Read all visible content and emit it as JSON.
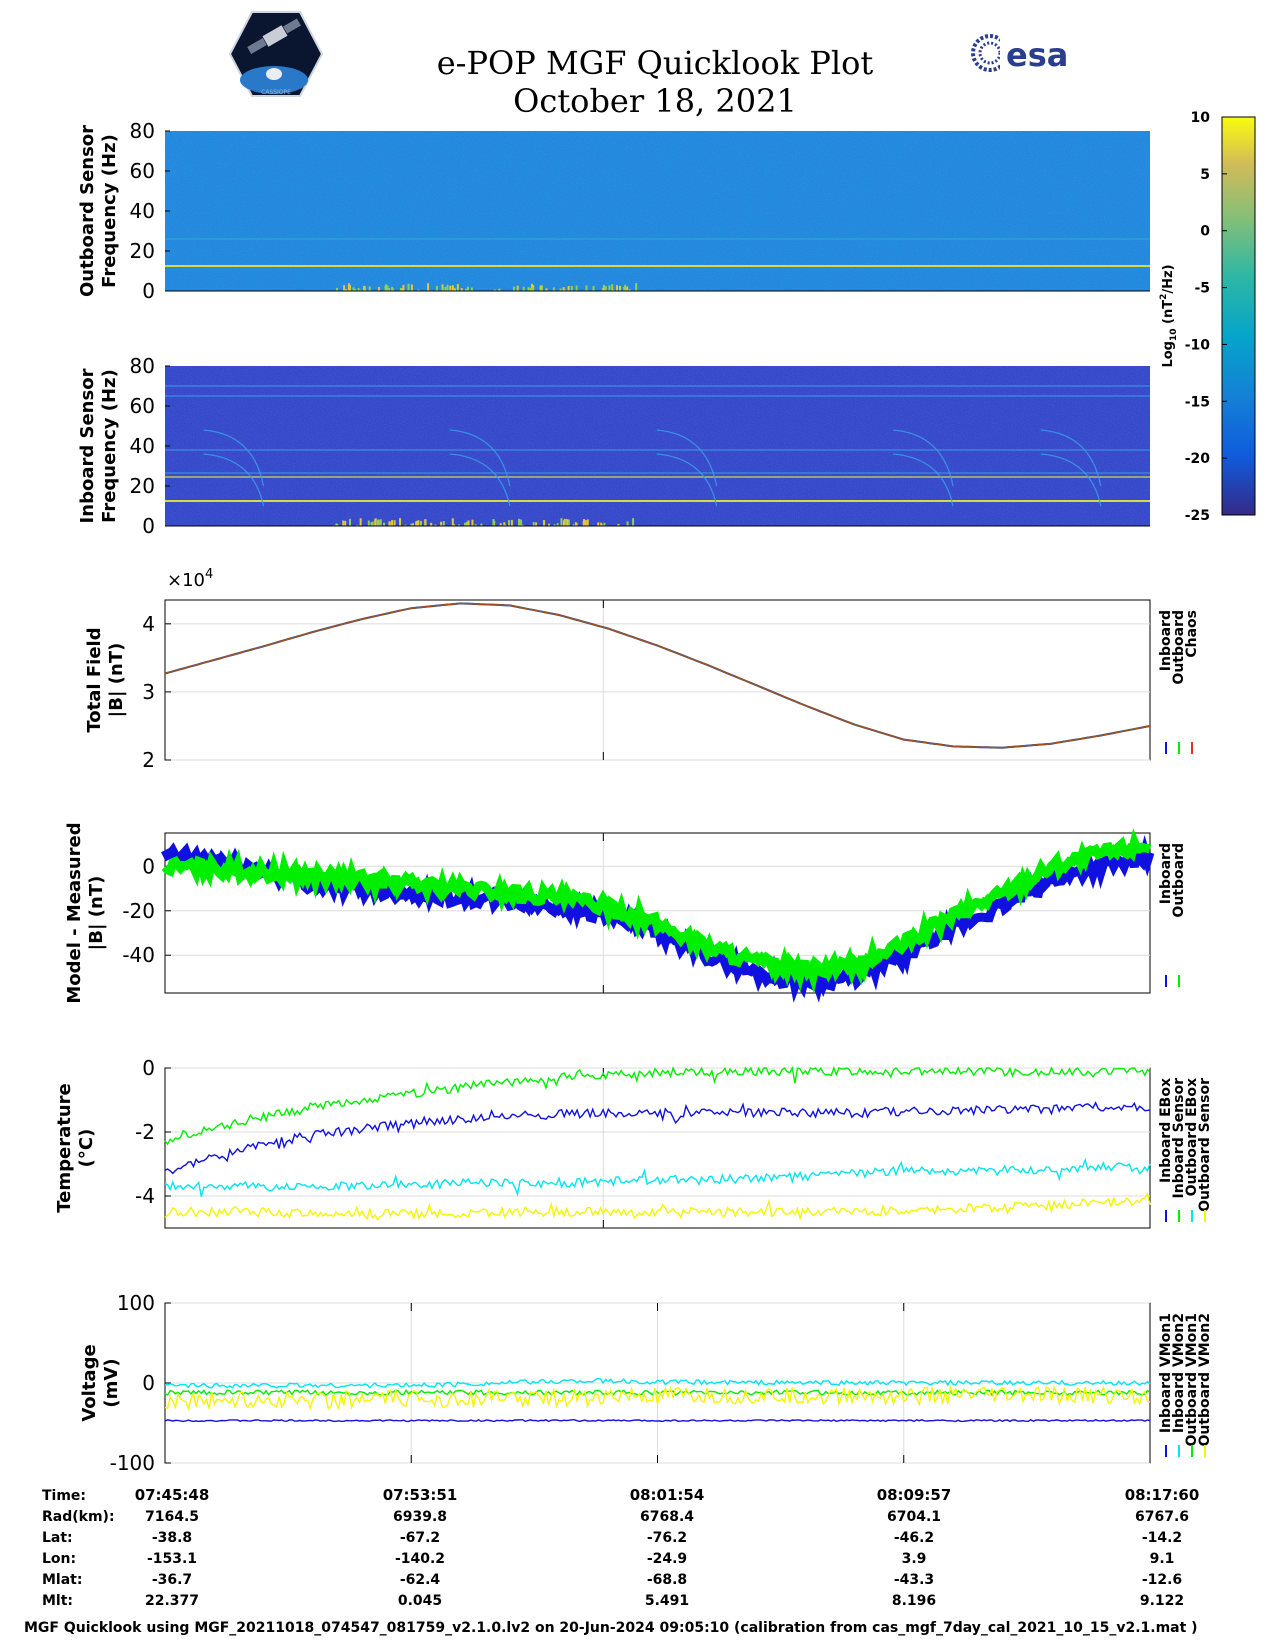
{
  "title": {
    "line1": "e-POP MGF Quicklook Plot",
    "line2": "October 18, 2021"
  },
  "logos": {
    "left": "cassiope-mission-logo",
    "right_text": "esa"
  },
  "colorbar": {
    "label": "Log10 (nT^2/Hz)",
    "range": [
      -25,
      10
    ],
    "ticks": [
      "10",
      "5",
      "0",
      "-5",
      "-10",
      "-15",
      "-20",
      "-25"
    ],
    "colormap": "parula"
  },
  "colors": {
    "inboard": "#1010e0",
    "outboard": "#00ee00",
    "chaos": "#e03020",
    "inboard_sensor": "#00e5ee",
    "outboard_sensor": "#f5f500",
    "spectrogram_line": "#d8d840"
  },
  "chart_data": [
    {
      "type": "heatmap",
      "ylabel": [
        "Outboard Sensor",
        "Frequency (Hz)"
      ],
      "ylim": [
        0,
        80
      ],
      "yticks": [
        "80",
        "60",
        "40",
        "20",
        "0"
      ],
      "background_level": -14,
      "persistent_lines_hz": [
        12.5,
        26
      ],
      "activity_band_hz": [
        0,
        4
      ]
    },
    {
      "type": "heatmap",
      "ylabel": [
        "Inboard Sensor",
        "Frequency (Hz)"
      ],
      "ylim": [
        0,
        80
      ],
      "yticks": [
        "80",
        "60",
        "40",
        "20",
        "0"
      ],
      "background_level": -21,
      "persistent_lines_hz": [
        12.5,
        24.5,
        26.5,
        38,
        65,
        70
      ],
      "activity_band_hz": [
        0,
        4
      ]
    },
    {
      "type": "line",
      "ylabel": [
        "Total Field",
        "|B| (nT)"
      ],
      "exponent_label": "×10",
      "exponent": "4",
      "ylim": [
        2,
        4.35
      ],
      "yticks": [
        "4",
        "3",
        "2"
      ],
      "grid": true,
      "legend": [
        "Inboard",
        "Outboard",
        "Chaos"
      ],
      "x": [
        0,
        0.05,
        0.1,
        0.15,
        0.2,
        0.25,
        0.3,
        0.35,
        0.4,
        0.45,
        0.5,
        0.55,
        0.6,
        0.65,
        0.7,
        0.75,
        0.8,
        0.85,
        0.9,
        0.95,
        1.0
      ],
      "values": [
        3.27,
        3.47,
        3.67,
        3.88,
        4.07,
        4.23,
        4.3,
        4.27,
        4.13,
        3.93,
        3.68,
        3.4,
        3.1,
        2.8,
        2.52,
        2.3,
        2.2,
        2.18,
        2.24,
        2.36,
        2.5
      ]
    },
    {
      "type": "line",
      "ylabel": [
        "Model - Measured",
        "|B| (nT)"
      ],
      "ylim": [
        -57,
        15
      ],
      "yticks": [
        "0",
        "-20",
        "-40"
      ],
      "grid": true,
      "legend": [
        "Inboard",
        "Outboard"
      ],
      "x": [
        0,
        0.05,
        0.1,
        0.15,
        0.2,
        0.25,
        0.3,
        0.35,
        0.4,
        0.45,
        0.5,
        0.55,
        0.6,
        0.65,
        0.7,
        0.75,
        0.8,
        0.85,
        0.9,
        0.95,
        1.0
      ],
      "series": [
        {
          "name": "Inboard",
          "values": [
            5,
            3,
            -2,
            -8,
            -10,
            -12,
            -14,
            -16,
            -18,
            -22,
            -30,
            -40,
            -48,
            -52,
            -50,
            -40,
            -28,
            -18,
            -6,
            0,
            4
          ]
        },
        {
          "name": "Outboard",
          "values": [
            0,
            -1,
            -3,
            -4,
            -6,
            -8,
            -10,
            -12,
            -14,
            -18,
            -26,
            -36,
            -43,
            -47,
            -45,
            -35,
            -22,
            -12,
            0,
            6,
            10
          ]
        }
      ]
    },
    {
      "type": "line",
      "ylabel": [
        "Temperature",
        "(°C)"
      ],
      "ylim": [
        -5,
        0
      ],
      "yticks": [
        "0",
        "-2",
        "-4"
      ],
      "grid": true,
      "legend": [
        "Inboard EBox",
        "Inboard Sensor",
        "Outboard EBox",
        "Outboard Sensor"
      ],
      "x": [
        0,
        0.05,
        0.1,
        0.15,
        0.2,
        0.25,
        0.3,
        0.35,
        0.4,
        0.45,
        0.5,
        0.55,
        0.6,
        0.65,
        0.7,
        0.75,
        0.8,
        0.85,
        0.9,
        0.95,
        1.0
      ],
      "series": [
        {
          "name": "Inboard EBox",
          "values": [
            -2.3,
            -1.9,
            -1.5,
            -1.2,
            -1.0,
            -0.8,
            -0.6,
            -0.45,
            -0.3,
            -0.2,
            -0.15,
            -0.1,
            -0.1,
            -0.1,
            -0.1,
            -0.1,
            -0.1,
            -0.1,
            -0.1,
            -0.1,
            -0.1
          ]
        },
        {
          "name": "Inboard Sensor",
          "values": [
            -3.3,
            -2.8,
            -2.4,
            -2.1,
            -1.9,
            -1.7,
            -1.6,
            -1.5,
            -1.45,
            -1.4,
            -1.4,
            -1.4,
            -1.4,
            -1.4,
            -1.4,
            -1.35,
            -1.35,
            -1.3,
            -1.3,
            -1.2,
            -1.2
          ]
        },
        {
          "name": "Outboard EBox",
          "values": [
            -3.7,
            -3.7,
            -3.7,
            -3.7,
            -3.7,
            -3.65,
            -3.6,
            -3.6,
            -3.6,
            -3.55,
            -3.5,
            -3.5,
            -3.45,
            -3.4,
            -3.3,
            -3.2,
            -3.2,
            -3.2,
            -3.15,
            -3.1,
            -3.1
          ]
        },
        {
          "name": "Outboard Sensor",
          "values": [
            -4.5,
            -4.5,
            -4.5,
            -4.55,
            -4.55,
            -4.55,
            -4.55,
            -4.5,
            -4.5,
            -4.5,
            -4.5,
            -4.5,
            -4.5,
            -4.5,
            -4.5,
            -4.45,
            -4.4,
            -4.35,
            -4.3,
            -4.2,
            -4.2
          ]
        }
      ]
    },
    {
      "type": "line",
      "ylabel": [
        "Voltage",
        "(mV)"
      ],
      "ylim": [
        -100,
        100
      ],
      "yticks": [
        "100",
        "0",
        "-100"
      ],
      "grid": true,
      "legend": [
        "Inboard VMon1",
        "Inboard VMon2",
        "Outboard VMon1",
        "Outboard VMon2"
      ],
      "x": [
        0,
        0.25,
        0.425,
        0.5,
        0.75,
        1.0
      ],
      "series": [
        {
          "name": "Inboard VMon1",
          "values": [
            -47,
            -47,
            -47,
            -47,
            -47,
            -47
          ]
        },
        {
          "name": "Inboard VMon2",
          "values": [
            -3,
            -3,
            3,
            1,
            0,
            0
          ]
        },
        {
          "name": "Outboard VMon1",
          "values": [
            -12,
            -12,
            -12,
            -12,
            -12,
            -12
          ]
        },
        {
          "name": "Outboard VMon2",
          "values": [
            -22,
            -20,
            -18,
            -17,
            -16,
            -15
          ]
        }
      ]
    }
  ],
  "ephemeris": {
    "labels": [
      "Time:",
      "Rad(km):",
      "Lat:",
      "Lon:",
      "Mlat:",
      "Mlt:"
    ],
    "columns": [
      [
        "07:45:48",
        "7164.5",
        "-38.8",
        "-153.1",
        "-36.7",
        "22.377"
      ],
      [
        "07:53:51",
        "6939.8",
        "-67.2",
        "-140.2",
        "-62.4",
        "0.045"
      ],
      [
        "08:01:54",
        "6768.4",
        "-76.2",
        "-24.9",
        "-68.8",
        "5.491"
      ],
      [
        "08:09:57",
        "6704.1",
        "-46.2",
        "3.9",
        "-43.3",
        "8.196"
      ],
      [
        "08:17:60",
        "6767.6",
        "-14.2",
        "9.1",
        "-12.6",
        "9.122"
      ]
    ]
  },
  "footer": "MGF Quicklook using MGF_20211018_074547_081759_v2.1.0.lv2 on 20-Jun-2024 09:05:10 (calibration from cas_mgf_7day_cal_2021_10_15_v2.1.mat )"
}
